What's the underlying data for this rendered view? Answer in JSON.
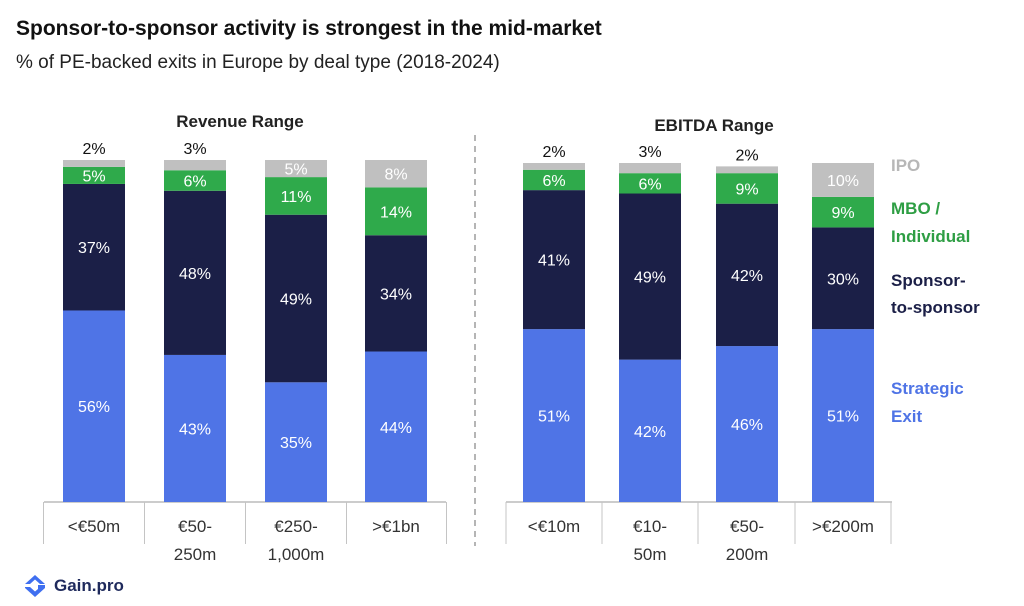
{
  "title": "Sponsor-to-sponsor activity is strongest in the mid-market",
  "subtitle": "% of PE-backed exits in Europe by deal type (2018-2024)",
  "colors": {
    "strategic": "#4f74e6",
    "sponsor": "#1b1f47",
    "mbo": "#2faa4b",
    "ipo": "#c0c0c0"
  },
  "legend": [
    {
      "key": "ipo",
      "lines": [
        "IPO"
      ],
      "color": "#b7b7b7"
    },
    {
      "key": "mbo",
      "lines": [
        "MBO /",
        "Individual"
      ],
      "color": "#2e9e44"
    },
    {
      "key": "sponsor",
      "lines": [
        "Sponsor-",
        "to-sponsor"
      ],
      "color": "#1b1f47"
    },
    {
      "key": "strategic",
      "lines": [
        "Strategic",
        "Exit"
      ],
      "color": "#4f74e6"
    }
  ],
  "logo": {
    "text": "Gain.pro",
    "icon": "gain-pro-logo-icon"
  },
  "chart_data": [
    {
      "type": "bar",
      "stacked": true,
      "title": "Revenue Range",
      "categories": [
        [
          "<€50m"
        ],
        [
          "€50-",
          "250m"
        ],
        [
          "€250-",
          "1,000m"
        ],
        [
          ">€1bn"
        ]
      ],
      "series": [
        {
          "name": "Strategic Exit",
          "key": "strategic",
          "values": [
            56,
            43,
            35,
            44
          ]
        },
        {
          "name": "Sponsor-to-sponsor",
          "key": "sponsor",
          "values": [
            37,
            48,
            49,
            34
          ]
        },
        {
          "name": "MBO / Individual",
          "key": "mbo",
          "values": [
            5,
            6,
            11,
            14
          ]
        },
        {
          "name": "IPO",
          "key": "ipo",
          "values": [
            2,
            3,
            5,
            8
          ]
        }
      ],
      "ylim": [
        0,
        100
      ]
    },
    {
      "type": "bar",
      "stacked": true,
      "title": "EBITDA Range",
      "categories": [
        [
          "<€10m"
        ],
        [
          "€10-",
          "50m"
        ],
        [
          "€50-",
          "200m"
        ],
        [
          ">€200m"
        ]
      ],
      "series": [
        {
          "name": "Strategic Exit",
          "key": "strategic",
          "values": [
            51,
            42,
            46,
            51
          ]
        },
        {
          "name": "Sponsor-to-sponsor",
          "key": "sponsor",
          "values": [
            41,
            49,
            42,
            30
          ]
        },
        {
          "name": "MBO / Individual",
          "key": "mbo",
          "values": [
            6,
            6,
            9,
            9
          ]
        },
        {
          "name": "IPO",
          "key": "ipo",
          "values": [
            2,
            3,
            2,
            10
          ]
        }
      ],
      "ylim": [
        0,
        100
      ]
    }
  ]
}
